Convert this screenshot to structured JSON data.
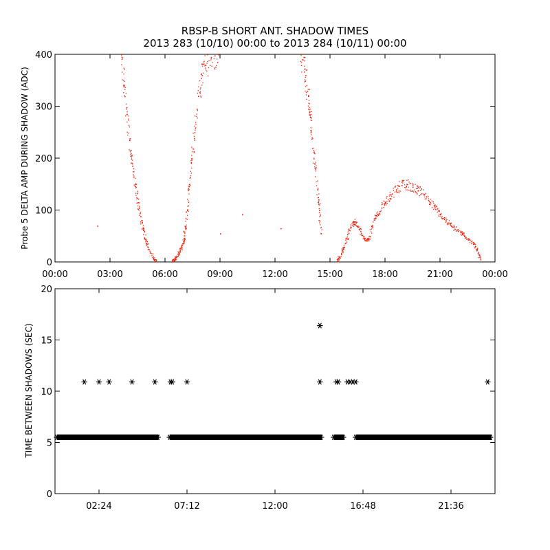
{
  "title_line1": "RBSP-B SHORT ANT. SHADOW TIMES",
  "title_line2": "2013 283 (10/10) 00:00 to 2013 284 (10/11) 00:00",
  "colors": {
    "background": "#ffffff",
    "top_points": "#e8200a",
    "bottom_points": "#000000",
    "axes": "#000000"
  },
  "chart_data": [
    {
      "type": "scatter",
      "ylabel": "Probe 5 DELTA AMP DURING SHADOW (ADC)",
      "xlabel": "",
      "x_unit": "hours",
      "xlim": [
        0,
        24
      ],
      "ylim": [
        0,
        400
      ],
      "x_ticks": [
        0,
        3,
        6,
        9,
        12,
        15,
        18,
        21,
        24
      ],
      "x_tick_labels": [
        "00:00",
        "03:00",
        "06:00",
        "09:00",
        "12:00",
        "15:00",
        "18:00",
        "21:00",
        "00:00"
      ],
      "y_ticks": [
        0,
        100,
        200,
        300,
        400
      ],
      "y_tick_labels": [
        "0",
        "100",
        "200",
        "300",
        "400"
      ],
      "marker": "dot",
      "series": [
        {
          "x": [
            3.6,
            3.75,
            3.9,
            4.05,
            4.2,
            4.35,
            4.5,
            4.65,
            4.8,
            4.95,
            5.1,
            5.4,
            5.5
          ],
          "y": [
            400,
            340,
            285,
            235,
            190,
            150,
            115,
            88,
            62,
            42,
            25,
            5,
            2
          ]
        },
        {
          "x": [
            6.4,
            6.5,
            6.6,
            6.75,
            6.9,
            7.0,
            7.1,
            7.2,
            7.3,
            7.45,
            7.6,
            7.8,
            8.0,
            8.2,
            8.5,
            8.7,
            8.9
          ],
          "y": [
            2,
            5,
            10,
            18,
            28,
            40,
            65,
            100,
            150,
            200,
            250,
            320,
            360,
            380,
            395,
            398,
            400
          ]
        },
        {
          "x": [
            13.4,
            13.5,
            13.65,
            13.8,
            13.9,
            14.0,
            14.15,
            14.3,
            14.4,
            14.5
          ],
          "y": [
            400,
            390,
            360,
            320,
            280,
            240,
            190,
            140,
            100,
            55
          ]
        },
        {
          "x": [
            15.4,
            15.5,
            15.7,
            15.9,
            16.1,
            16.3,
            16.5,
            16.7,
            16.9,
            17.1,
            17.3,
            17.5,
            17.8,
            18.0,
            18.3,
            18.6,
            18.9,
            19.2,
            19.5,
            19.8,
            20.1,
            20.4,
            20.7,
            21.0,
            21.3,
            21.6,
            21.9,
            22.2,
            22.5,
            22.8,
            23.0,
            23.2
          ],
          "y": [
            3,
            10,
            25,
            45,
            68,
            78,
            70,
            55,
            42,
            45,
            70,
            90,
            105,
            115,
            130,
            140,
            148,
            150,
            145,
            138,
            130,
            118,
            105,
            92,
            80,
            70,
            62,
            55,
            45,
            35,
            25,
            5
          ]
        },
        {
          "x": [
            2.3,
            7.0,
            9.0,
            10.2,
            12.3
          ],
          "y": [
            70,
            60,
            55,
            92,
            65
          ]
        }
      ]
    },
    {
      "type": "scatter",
      "ylabel": "TIME BETWEEN SHADOWS (SEC)",
      "xlabel": "",
      "x_unit": "hours",
      "xlim": [
        0,
        24
      ],
      "ylim": [
        0,
        20
      ],
      "x_ticks": [
        2.4,
        7.2,
        12.0,
        16.8,
        21.6
      ],
      "x_tick_labels": [
        "02:24",
        "07:12",
        "12:00",
        "16:48",
        "21:36"
      ],
      "y_ticks": [
        0,
        5,
        10,
        15,
        20
      ],
      "y_tick_labels": [
        "0",
        "5",
        "10",
        "15",
        "20"
      ],
      "marker": "asterisk",
      "baseline_value": 5.5,
      "baseline_segments": [
        [
          0.1,
          5.65
        ],
        [
          6.25,
          14.55
        ],
        [
          15.2,
          15.75
        ],
        [
          16.4,
          23.8
        ]
      ],
      "outliers": [
        {
          "x": 1.6,
          "y": 10.9
        },
        {
          "x": 2.4,
          "y": 10.9
        },
        {
          "x": 2.95,
          "y": 10.9
        },
        {
          "x": 4.2,
          "y": 10.9
        },
        {
          "x": 5.45,
          "y": 10.9
        },
        {
          "x": 6.3,
          "y": 10.9
        },
        {
          "x": 6.4,
          "y": 10.9
        },
        {
          "x": 7.2,
          "y": 10.9
        },
        {
          "x": 14.45,
          "y": 16.4
        },
        {
          "x": 14.45,
          "y": 10.9
        },
        {
          "x": 15.35,
          "y": 10.9
        },
        {
          "x": 15.45,
          "y": 10.9
        },
        {
          "x": 15.95,
          "y": 10.9
        },
        {
          "x": 16.1,
          "y": 10.9
        },
        {
          "x": 16.25,
          "y": 10.9
        },
        {
          "x": 16.4,
          "y": 10.9
        },
        {
          "x": 23.6,
          "y": 10.9
        }
      ]
    }
  ]
}
